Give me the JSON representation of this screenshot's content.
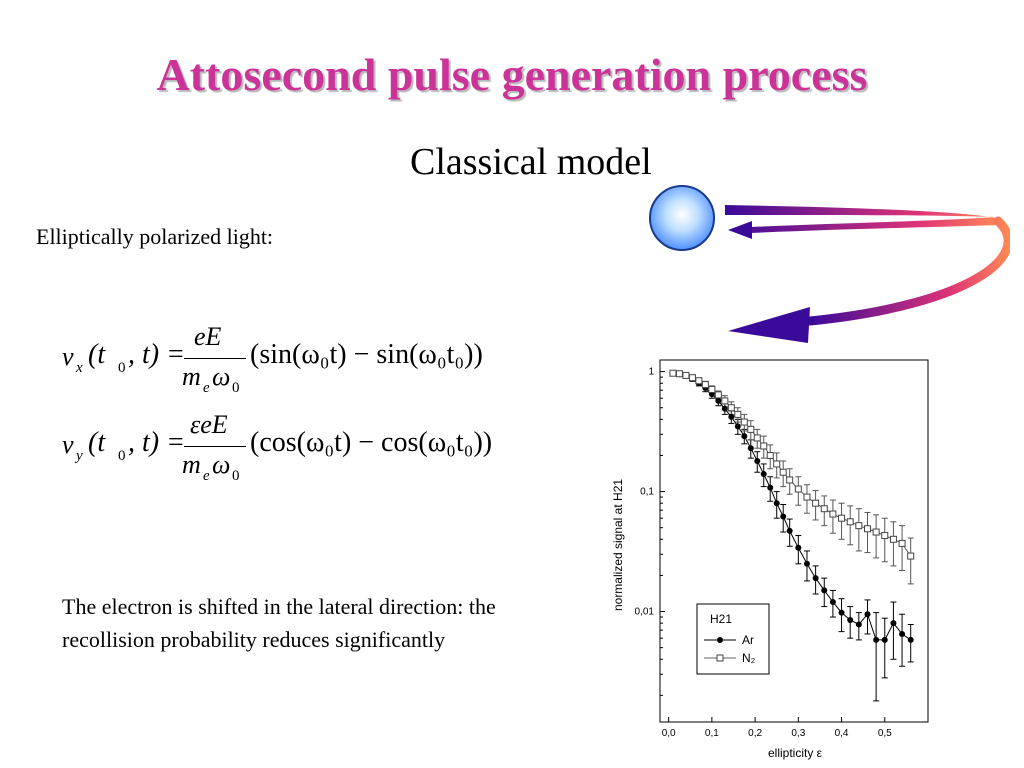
{
  "slide": {
    "title": "Attosecond pulse generation process",
    "subtitle": "Classical model",
    "intro": "Elliptically polarized light:",
    "note": "The electron is shifted in the lateral direction: the recollision probability reduces significantly"
  },
  "colors": {
    "title": "#cc3399",
    "arrow_start": "#3a0a9a",
    "arrow_end": "#ff7744",
    "ball": "#66aaff"
  },
  "equations": {
    "vx_label": "v",
    "vx_sub": "x",
    "vx_lhs": "(t",
    "vx_lhs_sub": "0",
    "vx_lhs_rest": ", t) =",
    "vx_num": "eE",
    "vy_label": "v",
    "vy_sub": "y",
    "vy_num": "εeE",
    "den_m": "m",
    "den_e": "e",
    "den_omega": "ω",
    "den_zero": "0",
    "vx_rhs": "(sin(ω₀t) − sin(ω₀t₀))",
    "vy_rhs": "(cos(ω₀t) − cos(ω₀t₀))"
  },
  "chart_data": {
    "type": "scatter",
    "xlabel": "ellipticity ε",
    "ylabel": "normalized signal at H21",
    "xlim": [
      -0.02,
      0.6
    ],
    "ylim": [
      0.0012,
      1.25
    ],
    "yscale": "log",
    "x_ticks": [
      "0,0",
      "0,1",
      "0,2",
      "0,3",
      "0,4",
      "0,5"
    ],
    "x_tick_values": [
      0.0,
      0.1,
      0.2,
      0.3,
      0.4,
      0.5
    ],
    "y_ticks": [
      "1",
      "0,1",
      "0,01"
    ],
    "y_tick_values": [
      1,
      0.1,
      0.01
    ],
    "legend_title": "H21",
    "legend_position": "bottom-left",
    "series": [
      {
        "name": "Ar",
        "marker": "filled-circle",
        "x": [
          0.01,
          0.025,
          0.04,
          0.055,
          0.07,
          0.085,
          0.1,
          0.115,
          0.13,
          0.145,
          0.16,
          0.175,
          0.19,
          0.205,
          0.22,
          0.235,
          0.25,
          0.265,
          0.28,
          0.3,
          0.32,
          0.34,
          0.36,
          0.38,
          0.4,
          0.42,
          0.44,
          0.46,
          0.48,
          0.5,
          0.52,
          0.54,
          0.56
        ],
        "y": [
          0.97,
          0.95,
          0.92,
          0.87,
          0.8,
          0.73,
          0.65,
          0.57,
          0.49,
          0.42,
          0.35,
          0.29,
          0.23,
          0.18,
          0.14,
          0.108,
          0.08,
          0.062,
          0.047,
          0.034,
          0.025,
          0.019,
          0.015,
          0.012,
          0.0098,
          0.0085,
          0.0078,
          0.0095,
          0.0058,
          0.0058,
          0.008,
          0.0065,
          0.0058
        ],
        "err": [
          0.03,
          0.03,
          0.03,
          0.04,
          0.04,
          0.05,
          0.05,
          0.05,
          0.05,
          0.05,
          0.05,
          0.04,
          0.04,
          0.035,
          0.03,
          0.025,
          0.02,
          0.016,
          0.012,
          0.009,
          0.007,
          0.005,
          0.004,
          0.003,
          0.003,
          0.0025,
          0.002,
          0.003,
          0.004,
          0.003,
          0.004,
          0.003,
          0.002
        ]
      },
      {
        "name": "N₂",
        "marker": "open-square",
        "x": [
          0.01,
          0.025,
          0.04,
          0.055,
          0.07,
          0.085,
          0.1,
          0.115,
          0.13,
          0.145,
          0.16,
          0.175,
          0.19,
          0.205,
          0.22,
          0.235,
          0.25,
          0.265,
          0.28,
          0.3,
          0.32,
          0.34,
          0.36,
          0.38,
          0.4,
          0.42,
          0.44,
          0.46,
          0.48,
          0.5,
          0.52,
          0.54,
          0.56
        ],
        "y": [
          0.97,
          0.96,
          0.93,
          0.89,
          0.84,
          0.78,
          0.71,
          0.64,
          0.57,
          0.5,
          0.44,
          0.38,
          0.33,
          0.28,
          0.24,
          0.2,
          0.17,
          0.145,
          0.125,
          0.105,
          0.09,
          0.08,
          0.072,
          0.065,
          0.06,
          0.056,
          0.052,
          0.049,
          0.046,
          0.043,
          0.04,
          0.037,
          0.029
        ],
        "err": [
          0.03,
          0.03,
          0.03,
          0.04,
          0.04,
          0.05,
          0.05,
          0.05,
          0.06,
          0.06,
          0.06,
          0.06,
          0.06,
          0.05,
          0.05,
          0.045,
          0.04,
          0.035,
          0.03,
          0.028,
          0.024,
          0.022,
          0.02,
          0.02,
          0.02,
          0.02,
          0.02,
          0.018,
          0.018,
          0.017,
          0.016,
          0.015,
          0.012
        ]
      }
    ]
  }
}
